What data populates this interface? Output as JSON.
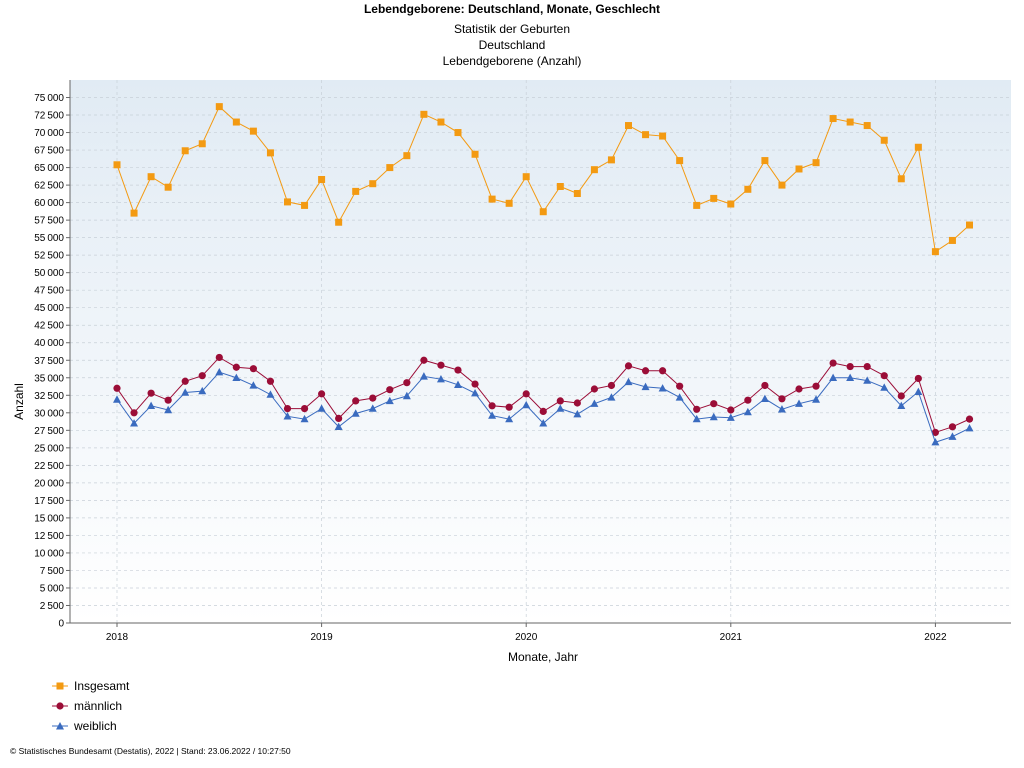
{
  "title": "Lebendgeborene: Deutschland, Monate, Geschlecht",
  "subtitles": [
    "Statistik der Geburten",
    "Deutschland",
    "Lebendgeborene (Anzahl)"
  ],
  "footer": "© Statistisches Bundesamt (Destatis), 2022 | Stand: 23.06.2022 / 10:27:50",
  "chart_data": {
    "type": "line",
    "xlabel": "Monate, Jahr",
    "ylabel": "Anzahl",
    "ylim": [
      0,
      77500
    ],
    "ytick_step": 2500,
    "xtick_labels": [
      "2018",
      "2019",
      "2020",
      "2021",
      "2022"
    ],
    "grid": true,
    "legend_position": "bottom-left",
    "x": [
      "2018-01",
      "2018-02",
      "2018-03",
      "2018-04",
      "2018-05",
      "2018-06",
      "2018-07",
      "2018-08",
      "2018-09",
      "2018-10",
      "2018-11",
      "2018-12",
      "2019-01",
      "2019-02",
      "2019-03",
      "2019-04",
      "2019-05",
      "2019-06",
      "2019-07",
      "2019-08",
      "2019-09",
      "2019-10",
      "2019-11",
      "2019-12",
      "2020-01",
      "2020-02",
      "2020-03",
      "2020-04",
      "2020-05",
      "2020-06",
      "2020-07",
      "2020-08",
      "2020-09",
      "2020-10",
      "2020-11",
      "2020-12",
      "2021-01",
      "2021-02",
      "2021-03",
      "2021-04",
      "2021-05",
      "2021-06",
      "2021-07",
      "2021-08",
      "2021-09",
      "2021-10",
      "2021-11",
      "2021-12",
      "2022-01",
      "2022-02",
      "2022-03"
    ],
    "series": [
      {
        "name": "Insgesamt",
        "color": "#f39a12",
        "marker": "square",
        "values": [
          65400,
          58500,
          63700,
          62200,
          67400,
          68400,
          73700,
          71500,
          70200,
          67100,
          60100,
          59600,
          63300,
          57200,
          61600,
          62700,
          65000,
          66700,
          72600,
          71500,
          70000,
          66900,
          60500,
          59900,
          63700,
          58700,
          62300,
          61300,
          64700,
          66100,
          71000,
          69700,
          69500,
          66000,
          59600,
          60600,
          59800,
          61900,
          66000,
          62500,
          64800,
          65700,
          72000,
          71500,
          71000,
          68900,
          63400,
          67900,
          53000,
          54600,
          56800
        ]
      },
      {
        "name": "männlich",
        "color": "#9b0d37",
        "marker": "circle",
        "values": [
          33500,
          30000,
          32800,
          31800,
          34500,
          35300,
          37900,
          36500,
          36300,
          34500,
          30600,
          30600,
          32700,
          29200,
          31700,
          32100,
          33300,
          34300,
          37500,
          36800,
          36100,
          34100,
          31000,
          30800,
          32700,
          30200,
          31700,
          31400,
          33400,
          33900,
          36700,
          36000,
          36000,
          33800,
          30500,
          31300,
          30400,
          31800,
          33900,
          32000,
          33400,
          33800,
          37100,
          36600,
          36600,
          35300,
          32400,
          34900,
          27200,
          28000,
          29100
        ]
      },
      {
        "name": "weiblich",
        "color": "#3a6bbf",
        "marker": "triangle",
        "values": [
          31900,
          28500,
          31000,
          30400,
          32900,
          33100,
          35800,
          35000,
          33900,
          32600,
          29500,
          29100,
          30600,
          28000,
          29900,
          30600,
          31700,
          32400,
          35200,
          34800,
          34000,
          32800,
          29600,
          29100,
          31100,
          28500,
          30600,
          29800,
          31300,
          32200,
          34400,
          33700,
          33500,
          32200,
          29100,
          29400,
          29300,
          30100,
          32000,
          30500,
          31300,
          31900,
          35000,
          35000,
          34600,
          33600,
          31000,
          33000,
          25800,
          26600,
          27800
        ]
      }
    ]
  }
}
